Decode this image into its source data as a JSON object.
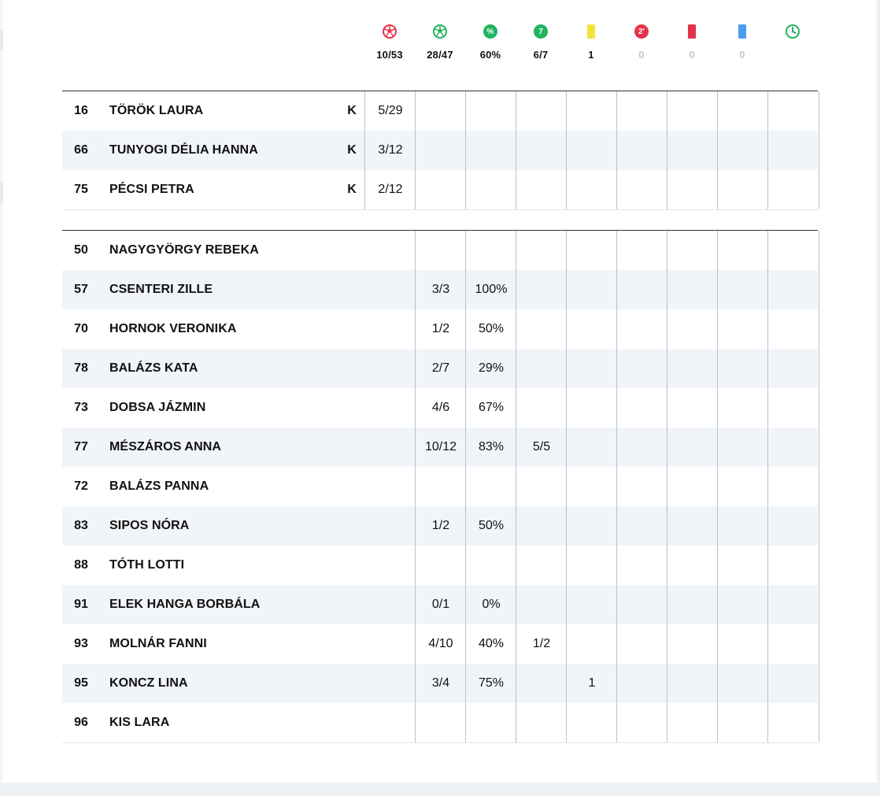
{
  "header": {
    "stats": [
      {
        "icon": "soccer-ball-red-icon",
        "value": "10/53",
        "muted": false
      },
      {
        "icon": "soccer-ball-green-icon",
        "value": "28/47",
        "muted": false
      },
      {
        "icon": "percent-icon",
        "symbol": "%",
        "value": "60%",
        "muted": false
      },
      {
        "icon": "seven-meter-icon",
        "symbol": "7",
        "value": "6/7",
        "muted": false
      },
      {
        "icon": "yellow-card-icon",
        "value": "1",
        "muted": false
      },
      {
        "icon": "two-minute-suspension-icon",
        "symbol": "2'",
        "value": "0",
        "muted": true
      },
      {
        "icon": "red-card-icon",
        "value": "0",
        "muted": true
      },
      {
        "icon": "blue-card-icon",
        "value": "0",
        "muted": true
      },
      {
        "icon": "clock-icon",
        "value": "",
        "muted": true
      }
    ]
  },
  "goalkeepers": [
    {
      "number": "16",
      "name": "TÖRÖK LAURA",
      "badge": "K",
      "cells": [
        "5/29",
        "",
        "",
        "",
        "",
        "",
        "",
        "",
        ""
      ]
    },
    {
      "number": "66",
      "name": "TUNYOGI DÉLIA HANNA",
      "badge": "K",
      "cells": [
        "3/12",
        "",
        "",
        "",
        "",
        "",
        "",
        "",
        ""
      ]
    },
    {
      "number": "75",
      "name": "PÉCSI PETRA",
      "badge": "K",
      "cells": [
        "2/12",
        "",
        "",
        "",
        "",
        "",
        "",
        "",
        ""
      ]
    }
  ],
  "players": [
    {
      "number": "50",
      "name": "NAGYGYÖRGY REBEKA",
      "cells": [
        "",
        "",
        "",
        "",
        "",
        "",
        "",
        ""
      ]
    },
    {
      "number": "57",
      "name": "CSENTERI ZILLE",
      "cells": [
        "3/3",
        "100%",
        "",
        "",
        "",
        "",
        "",
        ""
      ]
    },
    {
      "number": "70",
      "name": "HORNOK VERONIKA",
      "cells": [
        "1/2",
        "50%",
        "",
        "",
        "",
        "",
        "",
        ""
      ]
    },
    {
      "number": "78",
      "name": "BALÁZS KATA",
      "cells": [
        "2/7",
        "29%",
        "",
        "",
        "",
        "",
        "",
        ""
      ]
    },
    {
      "number": "73",
      "name": "DOBSA JÁZMIN",
      "cells": [
        "4/6",
        "67%",
        "",
        "",
        "",
        "",
        "",
        ""
      ]
    },
    {
      "number": "77",
      "name": "MÉSZÁROS ANNA",
      "cells": [
        "10/12",
        "83%",
        "5/5",
        "",
        "",
        "",
        "",
        ""
      ]
    },
    {
      "number": "72",
      "name": "BALÁZS PANNA",
      "cells": [
        "",
        "",
        "",
        "",
        "",
        "",
        "",
        ""
      ]
    },
    {
      "number": "83",
      "name": "SIPOS NÓRA",
      "cells": [
        "1/2",
        "50%",
        "",
        "",
        "",
        "",
        "",
        ""
      ]
    },
    {
      "number": "88",
      "name": "TÓTH LOTTI",
      "cells": [
        "",
        "",
        "",
        "",
        "",
        "",
        "",
        ""
      ]
    },
    {
      "number": "91",
      "name": "ELEK HANGA BORBÁLA",
      "cells": [
        "0/1",
        "0%",
        "",
        "",
        "",
        "",
        "",
        ""
      ]
    },
    {
      "number": "93",
      "name": "MOLNÁR FANNI",
      "cells": [
        "4/10",
        "40%",
        "1/2",
        "",
        "",
        "",
        "",
        ""
      ]
    },
    {
      "number": "95",
      "name": "KONCZ LINA",
      "cells": [
        "3/4",
        "75%",
        "",
        "1",
        "",
        "",
        "",
        ""
      ]
    },
    {
      "number": "96",
      "name": "KIS LARA",
      "cells": [
        "",
        "",
        "",
        "",
        "",
        "",
        "",
        ""
      ]
    }
  ],
  "colors": {
    "green": "#22b35e",
    "red": "#e5324b",
    "yellow": "#f3e43a",
    "blue": "#4a9df0",
    "row_alt": "#f1f4f8"
  }
}
